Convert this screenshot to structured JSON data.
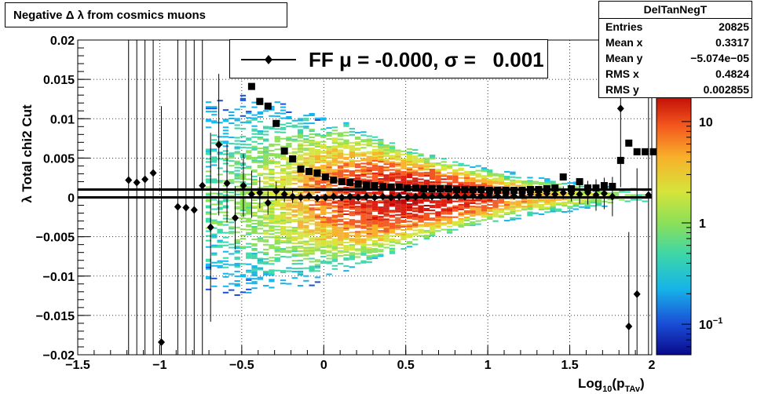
{
  "chart_data": {
    "type": "scatter",
    "title": "Negative Δ λ from cosmics muons",
    "xlabel_main": "Log",
    "xlabel_sub": "10",
    "xlabel_paren": "(p",
    "xlabel_sub2": "TAv",
    "xlabel_close": ")",
    "ylabel": "λ  Total chi2 Cut",
    "xlim": [
      -1.5,
      2.0
    ],
    "ylim": [
      -0.02,
      0.02
    ],
    "x_ticks": [
      {
        "v": -1.5,
        "t": "−1.5"
      },
      {
        "v": -1,
        "t": "−1"
      },
      {
        "v": -0.5,
        "t": "−0.5"
      },
      {
        "v": 0,
        "t": "0"
      },
      {
        "v": 0.5,
        "t": "0.5"
      },
      {
        "v": 1,
        "t": "1"
      },
      {
        "v": 1.5,
        "t": "1.5"
      },
      {
        "v": 2,
        "t": "2"
      }
    ],
    "y_ticks": [
      {
        "v": 0.02,
        "t": "0.02"
      },
      {
        "v": 0.015,
        "t": "0.015"
      },
      {
        "v": 0.01,
        "t": "0.01"
      },
      {
        "v": 0.005,
        "t": "0.005"
      },
      {
        "v": 0,
        "t": "0"
      },
      {
        "v": -0.005,
        "t": "−0.005"
      },
      {
        "v": -0.01,
        "t": "−0.01"
      },
      {
        "v": -0.015,
        "t": "−0.015"
      },
      {
        "v": -0.02,
        "t": "−0.02"
      }
    ],
    "grid": true,
    "legend": {
      "label": "FF μ = -0.000, σ =   0.001",
      "placement": "top-center"
    },
    "stats": {
      "name": "DelTanNegT",
      "rows": [
        {
          "label": "Entries",
          "value": "20825"
        },
        {
          "label": "Mean x",
          "value": "0.3317"
        },
        {
          "label": "Mean y",
          "value": "−5.074e−05"
        },
        {
          "label": "RMS x",
          "value": "0.4824"
        },
        {
          "label": "RMS y",
          "value": "0.002855"
        }
      ]
    },
    "colorbar": {
      "scale": "log",
      "range": [
        0.05,
        20
      ],
      "ticks": [
        {
          "v": 10,
          "t": "10"
        },
        {
          "v": 1,
          "t": "1"
        },
        {
          "v": 0.1,
          "t": "10",
          "sup": "−1"
        }
      ]
    },
    "reference_lines": [
      0.001,
      0.0
    ],
    "series": [
      {
        "marker": "diamond",
        "points": [
          {
            "x": -1.19,
            "y": 0.0022,
            "e": 0.03
          },
          {
            "x": -1.14,
            "y": 0.0019,
            "e": 0.03
          },
          {
            "x": -1.09,
            "y": 0.0023,
            "e": 0.03
          },
          {
            "x": -1.04,
            "y": 0.0031,
            "e": 0.03
          },
          {
            "x": -0.99,
            "y": -0.0184,
            "e": 0.03
          },
          {
            "x": -0.89,
            "y": -0.0012,
            "e": 0.03
          },
          {
            "x": -0.84,
            "y": -0.0013,
            "e": 0.03
          },
          {
            "x": -0.79,
            "y": -0.0016,
            "e": 0.03
          },
          {
            "x": -0.74,
            "y": 0.0015,
            "e": 0.03
          },
          {
            "x": -0.69,
            "y": -0.0038,
            "e": 0.012
          },
          {
            "x": -0.64,
            "y": 0.0067,
            "e": 0.009
          },
          {
            "x": -0.59,
            "y": 0.0018,
            "e": 0.005
          },
          {
            "x": -0.54,
            "y": -0.0026,
            "e": 0.004
          },
          {
            "x": -0.49,
            "y": 0.0015,
            "e": 0.004
          },
          {
            "x": -0.44,
            "y": 0.0004,
            "e": 0.003
          },
          {
            "x": -0.39,
            "y": 0.0006,
            "e": 0.002
          },
          {
            "x": -0.34,
            "y": -0.0007,
            "e": 0.0015
          },
          {
            "x": -0.29,
            "y": 0.0008,
            "e": 0.0012
          },
          {
            "x": -0.24,
            "y": 0.0004,
            "e": 0.001
          },
          {
            "x": -0.19,
            "y": 0.0001,
            "e": 0.0008
          },
          {
            "x": -0.14,
            "y": 0.0,
            "e": 0.0006
          },
          {
            "x": -0.09,
            "y": 0.0002,
            "e": 0.0005
          },
          {
            "x": -0.04,
            "y": -0.0001,
            "e": 0.0004
          },
          {
            "x": 0.01,
            "y": 0.0,
            "e": 0.0003
          },
          {
            "x": 0.06,
            "y": 0.0001,
            "e": 0.0003
          },
          {
            "x": 0.11,
            "y": 0.0,
            "e": 0.0003
          },
          {
            "x": 0.16,
            "y": 0.0001,
            "e": 0.0002
          },
          {
            "x": 0.21,
            "y": 0.0,
            "e": 0.0002
          },
          {
            "x": 0.26,
            "y": 0.0001,
            "e": 0.0002
          },
          {
            "x": 0.31,
            "y": 0.0,
            "e": 0.0002
          },
          {
            "x": 0.36,
            "y": 0.0001,
            "e": 0.0002
          },
          {
            "x": 0.41,
            "y": 0.0,
            "e": 0.0002
          },
          {
            "x": 0.46,
            "y": 0.0001,
            "e": 0.0002
          },
          {
            "x": 0.51,
            "y": 0.0,
            "e": 0.0002
          },
          {
            "x": 0.56,
            "y": 0.0001,
            "e": 0.0002
          },
          {
            "x": 0.61,
            "y": 0.0002,
            "e": 0.0002
          },
          {
            "x": 0.66,
            "y": 0.0001,
            "e": 0.0002
          },
          {
            "x": 0.71,
            "y": 0.0002,
            "e": 0.0002
          },
          {
            "x": 0.76,
            "y": 0.0001,
            "e": 0.0002
          },
          {
            "x": 0.81,
            "y": 0.0002,
            "e": 0.0002
          },
          {
            "x": 0.86,
            "y": 0.0001,
            "e": 0.0002
          },
          {
            "x": 0.91,
            "y": 0.0002,
            "e": 0.0003
          },
          {
            "x": 0.96,
            "y": 0.0002,
            "e": 0.0003
          },
          {
            "x": 1.01,
            "y": 0.0003,
            "e": 0.0003
          },
          {
            "x": 1.06,
            "y": 0.0002,
            "e": 0.0003
          },
          {
            "x": 1.11,
            "y": 0.0003,
            "e": 0.0003
          },
          {
            "x": 1.16,
            "y": 0.0002,
            "e": 0.0004
          },
          {
            "x": 1.21,
            "y": 0.0003,
            "e": 0.0004
          },
          {
            "x": 1.26,
            "y": 0.0004,
            "e": 0.0004
          },
          {
            "x": 1.31,
            "y": 0.0003,
            "e": 0.0005
          },
          {
            "x": 1.36,
            "y": 0.0005,
            "e": 0.0005
          },
          {
            "x": 1.41,
            "y": 0.0004,
            "e": 0.0006
          },
          {
            "x": 1.46,
            "y": 0.0006,
            "e": 0.0008
          },
          {
            "x": 1.51,
            "y": 0.0005,
            "e": 0.001
          },
          {
            "x": 1.56,
            "y": 0.0004,
            "e": 0.0012
          },
          {
            "x": 1.61,
            "y": 0.0006,
            "e": 0.0015
          },
          {
            "x": 1.66,
            "y": 0.0003,
            "e": 0.002
          },
          {
            "x": 1.71,
            "y": 0.0005,
            "e": 0.002
          },
          {
            "x": 1.76,
            "y": 0.0001,
            "e": 0.0025
          },
          {
            "x": 1.81,
            "y": 0.0113,
            "e": 0.01
          },
          {
            "x": 1.86,
            "y": -0.0164,
            "e": 0.012
          },
          {
            "x": 1.91,
            "y": -0.0123,
            "e": 0.016
          },
          {
            "x": 1.98,
            "y": 0.0003,
            "e": 0.03
          }
        ]
      },
      {
        "marker": "square",
        "points": [
          {
            "x": -0.44,
            "y": 0.0141
          },
          {
            "x": -0.39,
            "y": 0.0122
          },
          {
            "x": -0.34,
            "y": 0.0116
          },
          {
            "x": -0.29,
            "y": 0.0094
          },
          {
            "x": -0.24,
            "y": 0.0059
          },
          {
            "x": -0.19,
            "y": 0.0049
          },
          {
            "x": -0.14,
            "y": 0.0036
          },
          {
            "x": -0.09,
            "y": 0.0033
          },
          {
            "x": -0.04,
            "y": 0.0031
          },
          {
            "x": 0.01,
            "y": 0.0026
          },
          {
            "x": 0.06,
            "y": 0.0022
          },
          {
            "x": 0.11,
            "y": 0.002
          },
          {
            "x": 0.16,
            "y": 0.0019
          },
          {
            "x": 0.21,
            "y": 0.0017
          },
          {
            "x": 0.26,
            "y": 0.0016
          },
          {
            "x": 0.31,
            "y": 0.0015
          },
          {
            "x": 0.36,
            "y": 0.0014
          },
          {
            "x": 0.41,
            "y": 0.0013
          },
          {
            "x": 0.46,
            "y": 0.0013
          },
          {
            "x": 0.51,
            "y": 0.0012
          },
          {
            "x": 0.56,
            "y": 0.0012
          },
          {
            "x": 0.61,
            "y": 0.0011
          },
          {
            "x": 0.66,
            "y": 0.0011
          },
          {
            "x": 0.71,
            "y": 0.0011
          },
          {
            "x": 0.76,
            "y": 0.0011
          },
          {
            "x": 0.81,
            "y": 0.001
          },
          {
            "x": 0.86,
            "y": 0.001
          },
          {
            "x": 0.91,
            "y": 0.001
          },
          {
            "x": 0.96,
            "y": 0.001
          },
          {
            "x": 1.01,
            "y": 0.0009
          },
          {
            "x": 1.06,
            "y": 0.0009
          },
          {
            "x": 1.11,
            "y": 0.0009
          },
          {
            "x": 1.16,
            "y": 0.0009
          },
          {
            "x": 1.21,
            "y": 0.0009
          },
          {
            "x": 1.26,
            "y": 0.001
          },
          {
            "x": 1.31,
            "y": 0.001
          },
          {
            "x": 1.36,
            "y": 0.0011
          },
          {
            "x": 1.41,
            "y": 0.0012
          },
          {
            "x": 1.46,
            "y": 0.0026
          },
          {
            "x": 1.51,
            "y": 0.0011
          },
          {
            "x": 1.56,
            "y": 0.002
          },
          {
            "x": 1.61,
            "y": 0.0012
          },
          {
            "x": 1.66,
            "y": 0.0012
          },
          {
            "x": 1.71,
            "y": 0.0015
          },
          {
            "x": 1.76,
            "y": 0.0014
          },
          {
            "x": 1.81,
            "y": 0.0047
          },
          {
            "x": 1.86,
            "y": 0.0069
          },
          {
            "x": 1.91,
            "y": 0.0058
          },
          {
            "x": 1.96,
            "y": 0.0058
          },
          {
            "x": 2.01,
            "y": 0.0058
          }
        ]
      }
    ],
    "density_profile": [
      {
        "x": -0.6,
        "spread": 0.012,
        "peak": 0.3
      },
      {
        "x": -0.4,
        "spread": 0.01,
        "peak": 0.6
      },
      {
        "x": -0.2,
        "spread": 0.008,
        "peak": 1.5
      },
      {
        "x": 0.0,
        "spread": 0.0065,
        "peak": 4
      },
      {
        "x": 0.3,
        "spread": 0.005,
        "peak": 10
      },
      {
        "x": 0.6,
        "spread": 0.0035,
        "peak": 14
      },
      {
        "x": 0.9,
        "spread": 0.0025,
        "peak": 8
      },
      {
        "x": 1.2,
        "spread": 0.0018,
        "peak": 3
      },
      {
        "x": 1.5,
        "spread": 0.0014,
        "peak": 1
      },
      {
        "x": 1.8,
        "spread": 0.001,
        "peak": 0.4
      }
    ]
  }
}
